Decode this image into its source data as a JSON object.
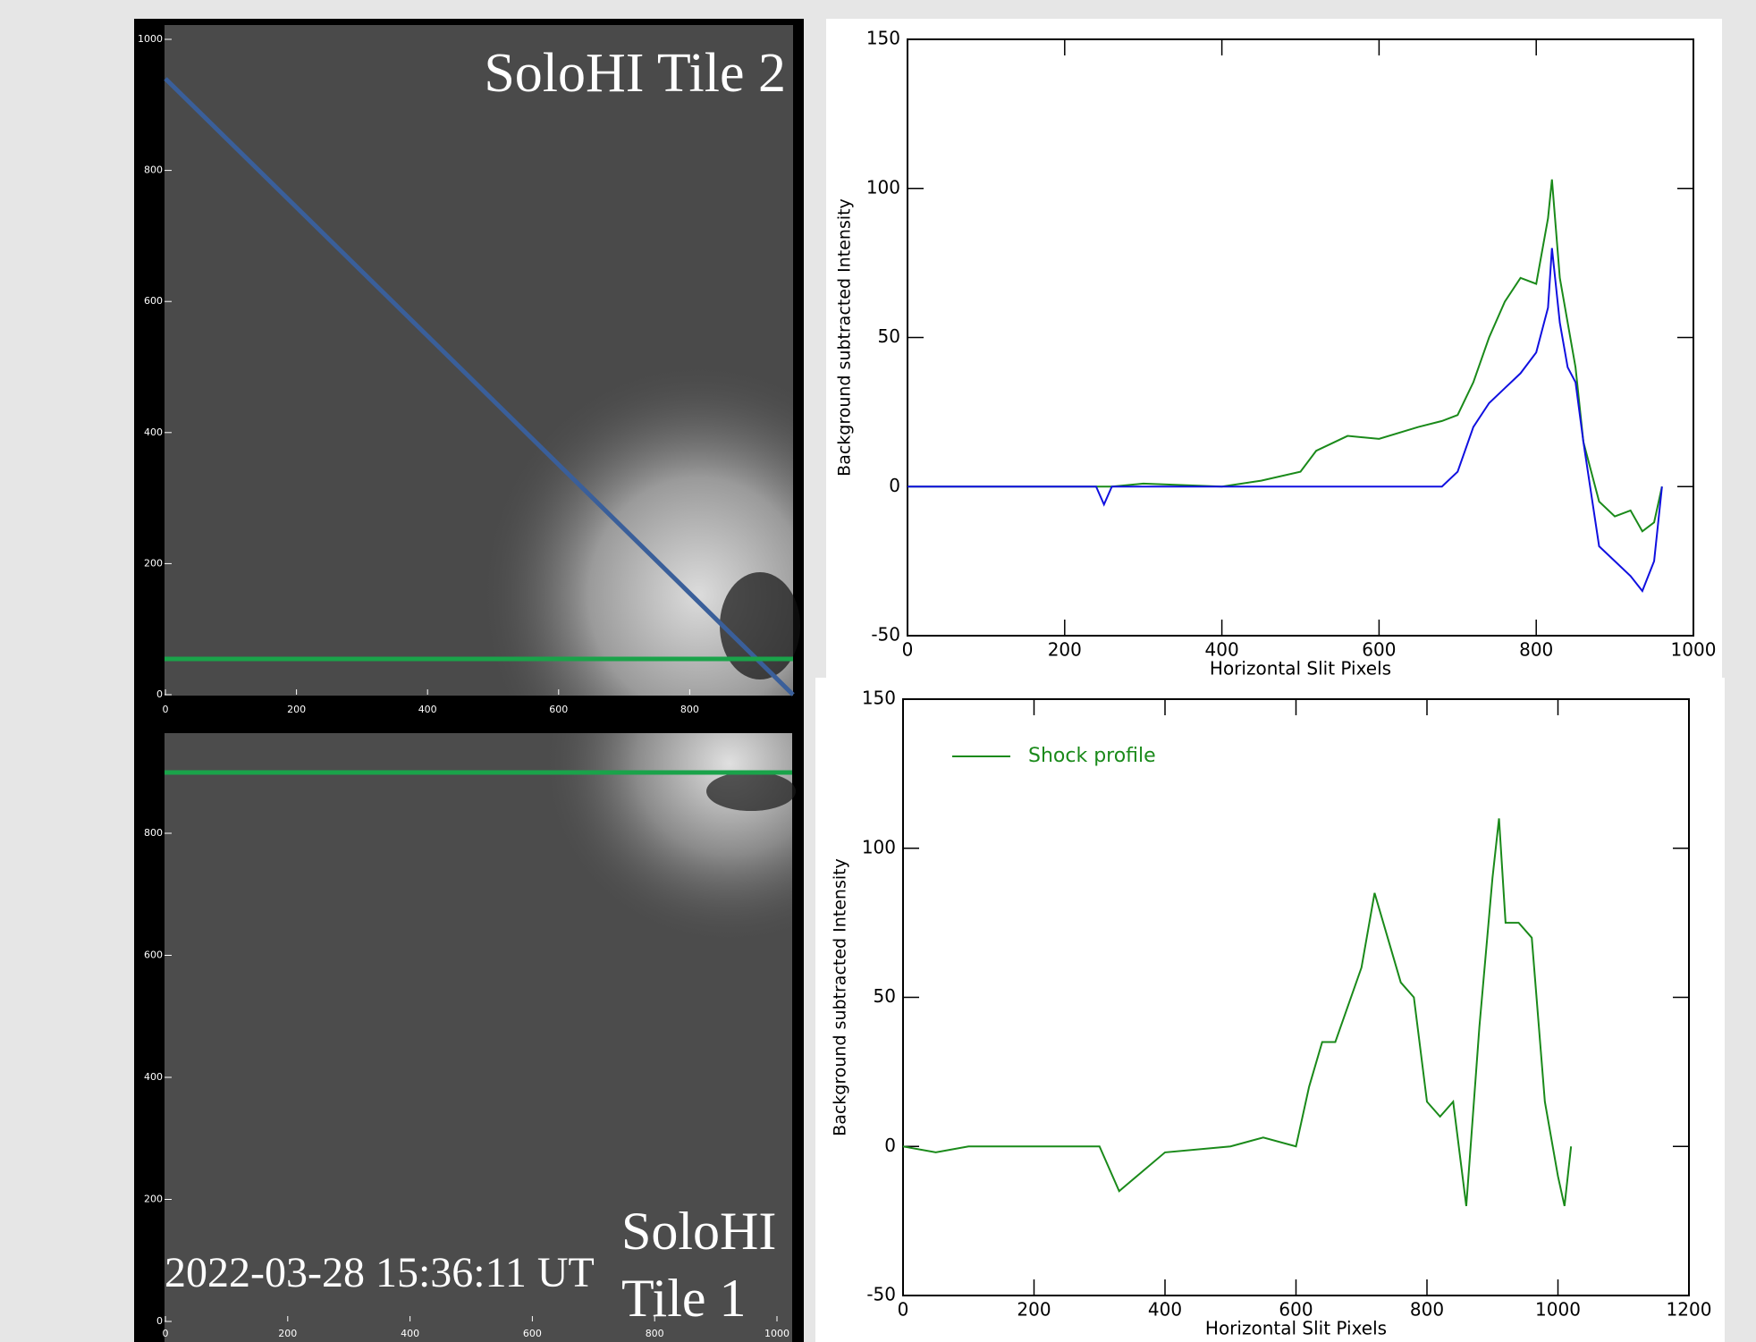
{
  "images": [
    {
      "label": "SoloHI Tile 2",
      "xticks": [
        0,
        200,
        400,
        600,
        800
      ],
      "yticks": [
        0,
        200,
        400,
        600,
        800,
        1000
      ]
    },
    {
      "label_lines": [
        "SoloHI",
        "Tile 1"
      ],
      "timestamp": "2022-03-28 15:36:11 UT",
      "xticks": [
        0,
        200,
        400,
        600,
        800,
        1000
      ],
      "yticks": [
        0,
        200,
        400,
        600,
        800
      ]
    }
  ],
  "chart_data": [
    {
      "type": "line",
      "xlabel": "Horizontal Slit Pixels",
      "ylabel": "Background subtracted Intensity",
      "x": [
        0,
        100,
        200,
        240,
        250,
        260,
        300,
        400,
        450,
        500,
        520,
        560,
        600,
        650,
        680,
        700,
        720,
        740,
        760,
        780,
        800,
        815,
        820,
        830,
        840,
        850,
        860,
        880,
        900,
        920,
        935,
        950,
        960
      ],
      "series": [
        {
          "color": "#1a8a1a",
          "values": [
            0,
            0,
            0,
            0,
            0,
            0,
            1,
            0,
            2,
            5,
            12,
            17,
            16,
            20,
            22,
            24,
            35,
            50,
            62,
            70,
            68,
            90,
            103,
            70,
            55,
            40,
            15,
            -5,
            -10,
            -8,
            -15,
            -12,
            0
          ]
        },
        {
          "color": "#1010e0",
          "values": [
            0,
            0,
            0,
            0,
            -6,
            0,
            0,
            0,
            0,
            0,
            0,
            0,
            0,
            0,
            0,
            5,
            20,
            28,
            33,
            38,
            45,
            60,
            80,
            55,
            40,
            35,
            15,
            -20,
            -25,
            -30,
            -35,
            -25,
            0
          ]
        }
      ],
      "xlim": [
        0,
        1000
      ],
      "xticks": [
        0,
        200,
        400,
        600,
        800,
        1000
      ],
      "ylim": [
        -50,
        150
      ],
      "yticks": [
        -50,
        0,
        50,
        100,
        150
      ]
    },
    {
      "type": "line",
      "xlabel": "Horizontal Slit Pixels",
      "ylabel": "Background subtracted Intensity",
      "x": [
        0,
        50,
        100,
        200,
        300,
        330,
        400,
        500,
        550,
        600,
        620,
        640,
        660,
        700,
        720,
        740,
        760,
        780,
        800,
        820,
        840,
        860,
        880,
        900,
        910,
        920,
        940,
        960,
        980,
        1000,
        1010,
        1020
      ],
      "series": [
        {
          "name": "Shock profile",
          "color": "#1a8a1a",
          "values": [
            0,
            -2,
            0,
            0,
            0,
            -15,
            -2,
            0,
            3,
            0,
            20,
            35,
            35,
            60,
            85,
            70,
            55,
            50,
            15,
            10,
            15,
            -20,
            40,
            90,
            110,
            75,
            75,
            70,
            15,
            -10,
            -20,
            0
          ]
        }
      ],
      "xlim": [
        0,
        1200
      ],
      "xticks": [
        0,
        200,
        400,
        600,
        800,
        1000,
        1200
      ],
      "ylim": [
        -50,
        150
      ],
      "yticks": [
        -50,
        0,
        50,
        100,
        150
      ],
      "legend": "upper left"
    }
  ]
}
